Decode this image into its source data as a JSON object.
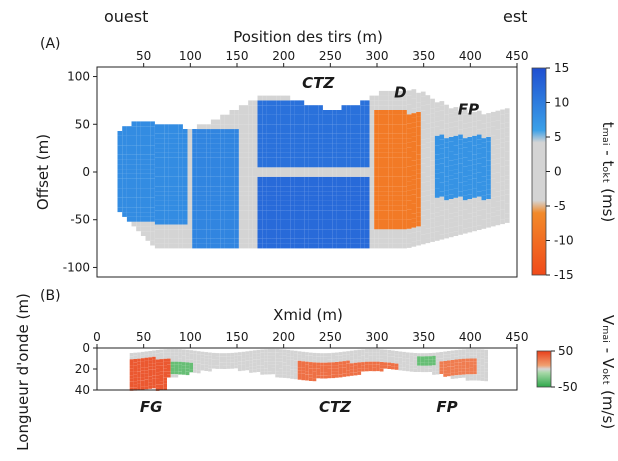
{
  "chart_data": [
    {
      "type": "heatmap",
      "panel_label": "(A)",
      "side_labels": {
        "left": "ouest",
        "right": "est"
      },
      "xlabel": "Position des tirs (m)",
      "ylabel": "Offset (m)",
      "xlim": [
        0,
        450
      ],
      "ylim": [
        -110,
        110
      ],
      "xticks": [
        50,
        100,
        150,
        200,
        250,
        300,
        350,
        400,
        450
      ],
      "yticks": [
        100,
        50,
        0,
        -50,
        -100
      ],
      "colorbar": {
        "label": "tₘₐᵢ - tₒₖₜ (ms)",
        "ticks": [
          15,
          10,
          5,
          0,
          -5,
          -10,
          -15
        ],
        "range": [
          -15,
          15
        ],
        "colors": {
          "max": "#1f4fd1",
          "positive": "#3aa0e8",
          "zero": "#d4d4d4",
          "negative": "#f28a2a",
          "min": "#f04a1a"
        }
      },
      "annotations": [
        {
          "text": "CTZ",
          "x": 237,
          "y": 88
        },
        {
          "text": "D",
          "x": 325,
          "y": 78
        },
        {
          "text": "FP",
          "x": 398,
          "y": 60
        }
      ],
      "zones": [
        {
          "x0": 20,
          "x1": 95,
          "y0": -55,
          "y1": 60,
          "value": 6
        },
        {
          "x0": 100,
          "x1": 150,
          "y0": -80,
          "y1": 40,
          "value": 7
        },
        {
          "x0": 170,
          "x1": 290,
          "y0": 5,
          "y1": 70,
          "value": 10
        },
        {
          "x0": 170,
          "x1": 290,
          "y0": -80,
          "y1": -10,
          "value": 11
        },
        {
          "x0": 295,
          "x1": 345,
          "y0": -60,
          "y1": 60,
          "value": -6
        },
        {
          "x0": 360,
          "x1": 420,
          "y0": -30,
          "y1": 35,
          "value": 5
        }
      ]
    },
    {
      "type": "heatmap",
      "panel_label": "(B)",
      "xlabel": "Xmid (m)",
      "ylabel": "Longueur d'onde (m)",
      "xlim": [
        0,
        450
      ],
      "ylim": [
        0,
        40
      ],
      "xticks": [
        0,
        50,
        100,
        150,
        200,
        250,
        300,
        350,
        400,
        450
      ],
      "yticks": [
        0,
        20,
        40
      ],
      "colorbar": {
        "label": "Vₘₐᵢ - Vₒₖₜ (m/s)",
        "ticks": [
          50,
          -50
        ],
        "range": [
          -50,
          50
        ],
        "colors": {
          "max": "#e8401a",
          "zero": "#d4d4d4",
          "min": "#2ea84a"
        }
      },
      "annotations": [
        {
          "text": "FG",
          "x": 58
        },
        {
          "text": "CTZ",
          "x": 255
        },
        {
          "text": "FP",
          "x": 375
        }
      ],
      "zones": [
        {
          "x0": 35,
          "x1": 75,
          "y0": 8,
          "y1": 38,
          "value": 40
        },
        {
          "x0": 75,
          "x1": 100,
          "y0": 12,
          "y1": 25,
          "value": -30
        },
        {
          "x0": 215,
          "x1": 320,
          "y0": 12,
          "y1": 30,
          "value": 30
        },
        {
          "x0": 340,
          "x1": 360,
          "y0": 5,
          "y1": 15,
          "value": -30
        },
        {
          "x0": 365,
          "x1": 405,
          "y0": 10,
          "y1": 25,
          "value": 25
        }
      ]
    }
  ]
}
